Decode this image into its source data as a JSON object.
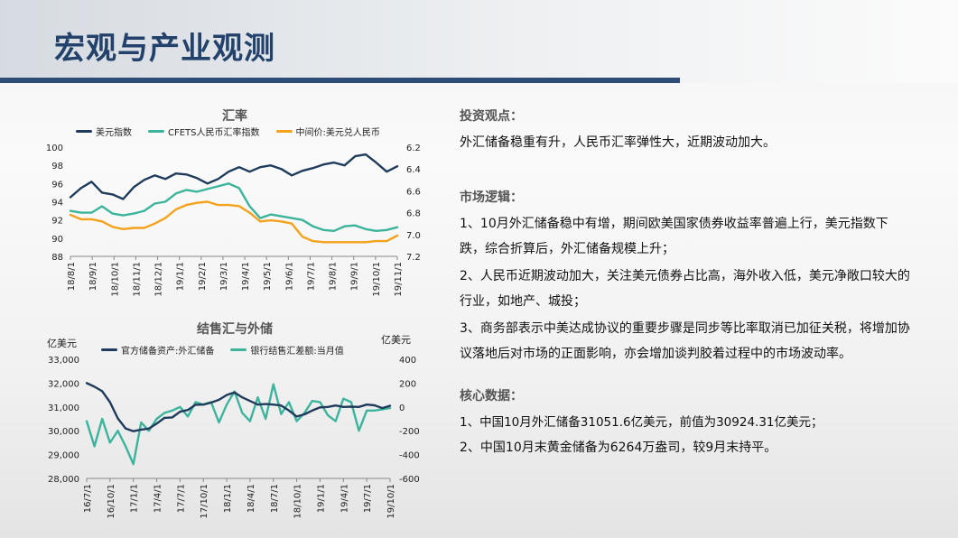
{
  "page": {
    "title": "宏观与产业观测"
  },
  "chart1": {
    "title": "汇率",
    "legend": [
      "美元指数",
      "CFETS人民币汇率指数",
      "中间价:美元兑人民币"
    ],
    "colors": {
      "dxy": "#1f3b5c",
      "cfets": "#3cb49c",
      "mid": "#f3a21c"
    },
    "left_ticks": [
      "100",
      "98",
      "96",
      "94",
      "92",
      "90",
      "88"
    ],
    "right_ticks": [
      "6.2",
      "6.4",
      "6.6",
      "6.8",
      "7.0",
      "7.2"
    ],
    "x_ticks": [
      "18/8/1",
      "18/9/1",
      "18/10/1",
      "18/11/1",
      "18/12/1",
      "19/1/1",
      "19/2/1",
      "19/3/1",
      "19/4/1",
      "19/5/1",
      "19/6/1",
      "19/7/1",
      "19/8/1",
      "19/9/1",
      "19/10/1",
      "19/11/1"
    ]
  },
  "chart2": {
    "title": "结售汇与外储",
    "left_unit": "亿美元",
    "right_unit": "亿美元",
    "legend": [
      "官方储备资产:外汇储备",
      "银行结售汇差额:当月值"
    ],
    "colors": {
      "reserve": "#1f3b5c",
      "balance": "#3cb49c"
    },
    "left_ticks": [
      "33,000",
      "32,000",
      "31,000",
      "30,000",
      "29,000",
      "28,000"
    ],
    "right_ticks": [
      "400",
      "200",
      "0",
      "-200",
      "-400",
      "-600"
    ],
    "x_ticks": [
      "16/7/1",
      "16/10/1",
      "17/1/1",
      "17/4/1",
      "17/7/1",
      "17/10/1",
      "18/1/1",
      "18/4/1",
      "18/7/1",
      "18/10/1",
      "19/1/1",
      "19/4/1",
      "19/7/1",
      "19/10/1"
    ]
  },
  "chart_data": [
    {
      "type": "line",
      "title": "汇率",
      "y_left_range": [
        88,
        100
      ],
      "y_right_range": [
        6.2,
        7.2
      ],
      "y_right_inverted": true,
      "x_range": [
        "2018-08-01",
        "2019-11-01"
      ],
      "series": [
        {
          "name": "美元指数",
          "axis": "left",
          "values": [
            94.5,
            95.5,
            96.2,
            95.0,
            94.8,
            94.3,
            95.6,
            96.4,
            96.9,
            96.5,
            97.1,
            97.0,
            96.6,
            96.0,
            96.5,
            97.3,
            97.8,
            97.3,
            97.8,
            98.0,
            97.6,
            96.9,
            97.4,
            97.7,
            98.1,
            98.3,
            98.0,
            99.0,
            99.2,
            98.3,
            97.3,
            97.9
          ]
        },
        {
          "name": "CFETS人民币汇率指数",
          "axis": "left",
          "values": [
            93.0,
            92.8,
            92.8,
            93.5,
            92.7,
            92.5,
            92.7,
            93.0,
            93.8,
            94.0,
            94.9,
            95.3,
            95.1,
            95.4,
            95.7,
            96.0,
            95.5,
            93.5,
            92.2,
            92.6,
            92.4,
            92.2,
            92.0,
            91.3,
            90.9,
            90.8,
            91.3,
            91.4,
            91.0,
            90.8,
            90.9,
            91.2
          ]
        },
        {
          "name": "中间价:美元兑人民币",
          "axis": "right",
          "values": [
            6.82,
            6.86,
            6.86,
            6.88,
            6.93,
            6.95,
            6.94,
            6.94,
            6.9,
            6.85,
            6.77,
            6.73,
            6.71,
            6.7,
            6.73,
            6.73,
            6.74,
            6.8,
            6.88,
            6.87,
            6.88,
            6.9,
            7.02,
            7.06,
            7.07,
            7.07,
            7.07,
            7.07,
            7.07,
            7.06,
            7.06,
            7.01
          ]
        }
      ]
    },
    {
      "type": "line",
      "title": "结售汇与外储",
      "y_left_range": [
        28000,
        33000
      ],
      "y_right_range": [
        -600,
        400
      ],
      "x_range": [
        "2016-07-01",
        "2019-10-01"
      ],
      "series": [
        {
          "name": "官方储备资产:外汇储备",
          "axis": "left",
          "values": [
            32000,
            31850,
            31660,
            31200,
            30520,
            30100,
            29980,
            30050,
            30090,
            30300,
            30540,
            30560,
            30800,
            30870,
            31090,
            31100,
            31180,
            31300,
            31500,
            31610,
            31400,
            31250,
            31100,
            31120,
            31100,
            31060,
            30850,
            30600,
            30690,
            30850,
            30980,
            31000,
            31060,
            31000,
            31010,
            31000,
            31100,
            31070,
            30950,
            31050
          ]
        },
        {
          "name": "银行结售汇差额:当月值",
          "axis": "right",
          "values": [
            -120,
            -330,
            -100,
            -300,
            -200,
            -330,
            -480,
            -130,
            -200,
            -100,
            -50,
            -30,
            0,
            -80,
            40,
            20,
            40,
            -130,
            20,
            130,
            -50,
            -120,
            80,
            -100,
            190,
            -60,
            40,
            -120,
            -50,
            50,
            40,
            -70,
            -120,
            70,
            40,
            -200,
            -30,
            -30,
            -20,
            -10
          ]
        }
      ]
    }
  ],
  "right_panel": {
    "sections": [
      {
        "heading": "投资观点：",
        "paras": [
          "外汇储备稳重有升，人民币汇率弹性大，近期波动加大。"
        ]
      },
      {
        "heading": "市场逻辑：",
        "paras": [
          "1、10月外汇储备稳中有增，期间欧美国家债券收益率普遍上行，美元指数下跌，综合折算后，外汇储备规模上升；",
          "2、人民币近期波动加大，关注美元债券占比高，海外收入低，美元净敞口较大的行业，如地产、城投；",
          "3、商务部表示中美达成协议的重要步骤是同步等比率取消已加征关税，将增加协议落地后对市场的正面影响，亦会增加谈判胶着过程中的市场波动率。"
        ]
      },
      {
        "heading": "核心数据：",
        "paras": [
          "1、中国10月外汇储备31051.6亿美元，前值为30924.31亿美元；",
          "2、中国10月末黄金储备为6264万盎司，较9月末持平。"
        ]
      }
    ]
  }
}
